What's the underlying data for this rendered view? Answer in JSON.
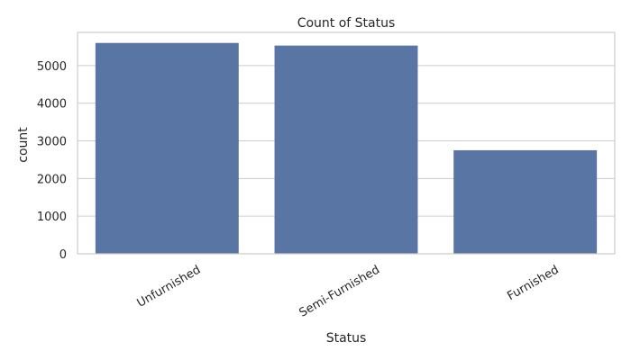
{
  "chart_data": {
    "type": "bar",
    "title": "Count of Status",
    "xlabel": "Status",
    "ylabel": "count",
    "categories": [
      "Unfurnished",
      "Semi-Furnished",
      "Furnished"
    ],
    "values": [
      5600,
      5530,
      2750
    ],
    "ylim": [
      0,
      5880
    ],
    "yticks": [
      0,
      1000,
      2000,
      3000,
      4000,
      5000
    ],
    "grid": true,
    "legend": "none",
    "bar_color": "#5975a4",
    "grid_color": "#cccccc",
    "spine_color": "#cccccc"
  }
}
